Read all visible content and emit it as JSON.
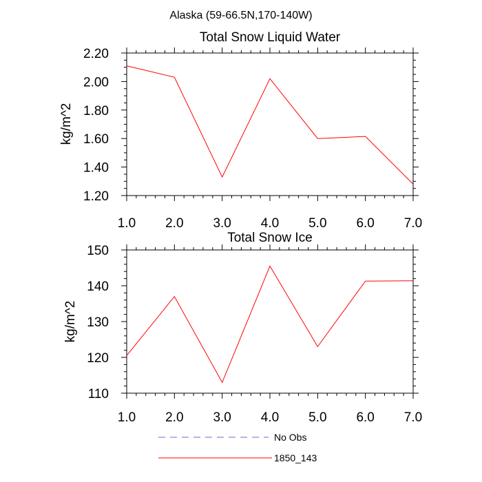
{
  "figure": {
    "suptitle": "Alaska (59-66.5N,170-140W)"
  },
  "chart_data": [
    {
      "type": "line",
      "title": "Total Snow Liquid Water",
      "xlabel": "",
      "ylabel": "kg/m^2",
      "xlim": [
        1.0,
        7.0
      ],
      "ylim": [
        1.2,
        2.2
      ],
      "xticks": [
        "1.0",
        "2.0",
        "3.0",
        "4.0",
        "5.0",
        "6.0",
        "7.0"
      ],
      "yticks": [
        "1.20",
        "1.40",
        "1.60",
        "1.80",
        "2.00",
        "2.20"
      ],
      "grid": false,
      "series": [
        {
          "name": "1850_143",
          "color": "#ff0000",
          "x": [
            1,
            2,
            3,
            4,
            5,
            6,
            7
          ],
          "values": [
            2.11,
            2.03,
            1.33,
            2.02,
            1.6,
            1.615,
            1.28
          ]
        }
      ]
    },
    {
      "type": "line",
      "title": "Total Snow Ice",
      "xlabel": "",
      "ylabel": "kg/m^2",
      "xlim": [
        1.0,
        7.0
      ],
      "ylim": [
        110,
        150
      ],
      "xticks": [
        "1.0",
        "2.0",
        "3.0",
        "4.0",
        "5.0",
        "6.0",
        "7.0"
      ],
      "yticks": [
        "110",
        "120",
        "130",
        "140",
        "150"
      ],
      "grid": false,
      "series": [
        {
          "name": "1850_143",
          "color": "#ff0000",
          "x": [
            1,
            2,
            3,
            4,
            5,
            6,
            7
          ],
          "values": [
            120.5,
            137.0,
            113.0,
            145.5,
            123.0,
            141.3,
            141.4
          ]
        }
      ]
    }
  ],
  "legend": {
    "placement": "bottom",
    "items": [
      {
        "label": "No Obs",
        "color": "#6a6acd",
        "style": "dashed"
      },
      {
        "label": "1850_143",
        "color": "#ff0000",
        "style": "solid"
      }
    ]
  }
}
